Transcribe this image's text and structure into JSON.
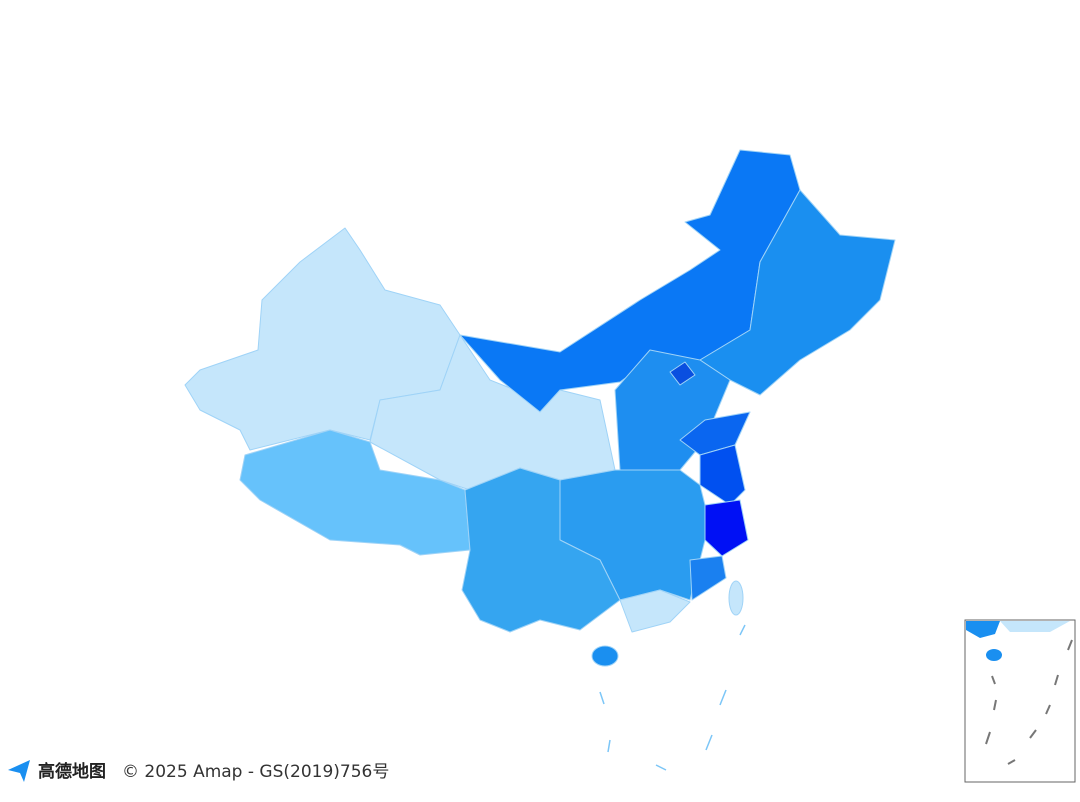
{
  "attribution": {
    "brand": "高德地图",
    "copyright": "© 2025 Amap - GS(2019)756号"
  }
}
